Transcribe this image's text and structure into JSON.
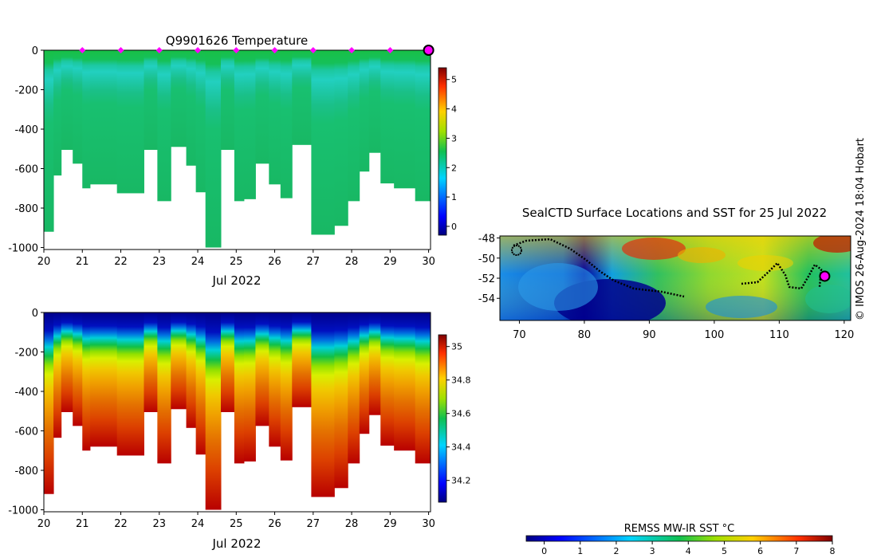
{
  "credit": "© IMOS 26-Aug-2024 18:04 Hobart",
  "chart_data": [
    {
      "type": "heatmap",
      "title": "Q9901626  Temperature",
      "xlabel": "Jul 2022",
      "ylabel": "",
      "x_ticks": [
        "20",
        "21",
        "22",
        "23",
        "24",
        "25",
        "26",
        "27",
        "28",
        "29",
        "30"
      ],
      "y_ticks": [
        "0",
        "-200",
        "-400",
        "-600",
        "-800",
        "-1000"
      ],
      "xlim": [
        20,
        30.05
      ],
      "ylim": [
        -1010,
        0
      ],
      "colorbar_ticks": [
        "0",
        "1",
        "2",
        "3",
        "4",
        "5"
      ],
      "colorbar_range": [
        -0.3,
        5.4
      ],
      "surface_markers_x": [
        21,
        22,
        23,
        24,
        25,
        26,
        27,
        28,
        29
      ],
      "latest_marker_x": 30,
      "profiles": [
        {
          "t": 20.0,
          "bottom": -920
        },
        {
          "t": 20.25,
          "bottom": -635
        },
        {
          "t": 20.45,
          "bottom": -505
        },
        {
          "t": 20.75,
          "bottom": -575
        },
        {
          "t": 21.0,
          "bottom": -700
        },
        {
          "t": 21.2,
          "bottom": -680
        },
        {
          "t": 21.9,
          "bottom": -725
        },
        {
          "t": 22.6,
          "bottom": -505
        },
        {
          "t": 22.95,
          "bottom": -765
        },
        {
          "t": 23.3,
          "bottom": -490
        },
        {
          "t": 23.7,
          "bottom": -585
        },
        {
          "t": 23.95,
          "bottom": -720
        },
        {
          "t": 24.2,
          "bottom": -1000
        },
        {
          "t": 24.6,
          "bottom": -505
        },
        {
          "t": 24.95,
          "bottom": -765
        },
        {
          "t": 25.2,
          "bottom": -755
        },
        {
          "t": 25.5,
          "bottom": -575
        },
        {
          "t": 25.85,
          "bottom": -680
        },
        {
          "t": 26.15,
          "bottom": -750
        },
        {
          "t": 26.45,
          "bottom": -480
        },
        {
          "t": 26.95,
          "bottom": -935
        },
        {
          "t": 27.55,
          "bottom": -890
        },
        {
          "t": 27.9,
          "bottom": -765
        },
        {
          "t": 28.2,
          "bottom": -615
        },
        {
          "t": 28.45,
          "bottom": -520
        },
        {
          "t": 28.75,
          "bottom": -675
        },
        {
          "t": 29.1,
          "bottom": -700
        },
        {
          "t": 29.65,
          "bottom": -765
        }
      ],
      "profile_end": 30.05
    },
    {
      "type": "heatmap",
      "title": "",
      "xlabel": "Jul 2022",
      "ylabel": "",
      "x_ticks": [
        "20",
        "21",
        "22",
        "23",
        "24",
        "25",
        "26",
        "27",
        "28",
        "29",
        "30"
      ],
      "y_ticks": [
        "0",
        "-200",
        "-400",
        "-600",
        "-800",
        "-1000"
      ],
      "xlim": [
        20,
        30.05
      ],
      "ylim": [
        -1010,
        0
      ],
      "colorbar_ticks": [
        "34.2",
        "34.4",
        "34.6",
        "34.8",
        "35"
      ],
      "colorbar_range": [
        34.07,
        35.07
      ]
    },
    {
      "type": "heatmap",
      "title": "SealCTD Surface Locations and SST for 25 Jul 2022",
      "xlabel": "",
      "ylabel": "",
      "x_ticks": [
        "70",
        "80",
        "90",
        "100",
        "110",
        "120"
      ],
      "y_ticks": [
        "-48",
        "-50",
        "-52",
        "-54"
      ],
      "xlim": [
        67,
        121
      ],
      "ylim": [
        -56.2,
        -47.8
      ],
      "colorbar_label": "REMSS MW-IR SST °C",
      "colorbar_ticks": [
        "0",
        "1",
        "2",
        "3",
        "4",
        "5",
        "6",
        "7",
        "8"
      ],
      "colorbar_range": [
        -0.5,
        8
      ],
      "latest_position": {
        "lon": 117,
        "lat": -51.8
      }
    }
  ]
}
